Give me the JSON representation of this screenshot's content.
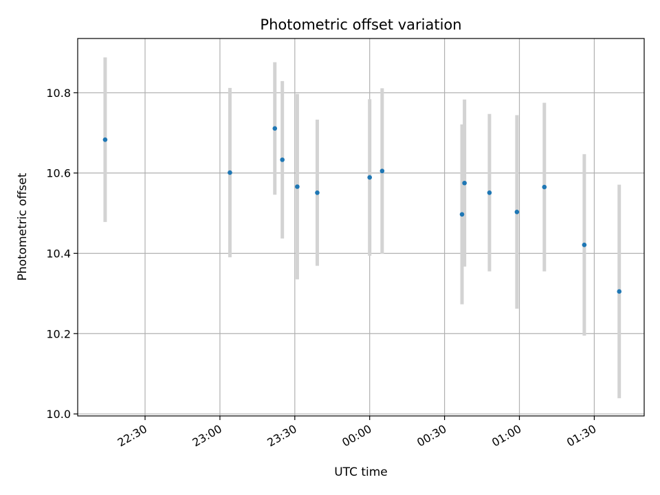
{
  "chart_data": {
    "type": "scatter",
    "title": "Photometric offset variation",
    "xlabel": "UTC time",
    "ylabel": "Photometric offset",
    "x_ticks": [
      "22:30",
      "23:00",
      "23:30",
      "00:00",
      "00:30",
      "01:00",
      "01:30"
    ],
    "x_tick_times": [
      "2000-01-01T22:30",
      "2000-01-01T23:00",
      "2000-01-01T23:30",
      "2000-01-02T00:00",
      "2000-01-02T00:30",
      "2000-01-02T01:00",
      "2000-01-02T01:30"
    ],
    "xlim": [
      "2000-01-01T22:03",
      "2000-01-02T01:50"
    ],
    "y_ticks": [
      "10.0",
      "10.2",
      "10.4",
      "10.6",
      "10.8"
    ],
    "y_tick_values": [
      10.0,
      10.2,
      10.4,
      10.6,
      10.8
    ],
    "ylim": [
      9.995,
      10.935
    ],
    "grid": true,
    "colors": {
      "point": "#1f77b4",
      "errorbar": "#d3d3d3",
      "grid": "#b0b0b0",
      "axes": "#000000"
    },
    "points": [
      {
        "x": "2000-01-01T22:14",
        "y": 10.683,
        "yerr": 0.205
      },
      {
        "x": "2000-01-01T23:04",
        "y": 10.601,
        "yerr": 0.211
      },
      {
        "x": "2000-01-01T23:22",
        "y": 10.711,
        "yerr": 0.165
      },
      {
        "x": "2000-01-01T23:25",
        "y": 10.633,
        "yerr": 0.196
      },
      {
        "x": "2000-01-01T23:31",
        "y": 10.566,
        "yerr": 0.231
      },
      {
        "x": "2000-01-01T23:39",
        "y": 10.551,
        "yerr": 0.182
      },
      {
        "x": "2000-01-02T00:00",
        "y": 10.589,
        "yerr": 0.195
      },
      {
        "x": "2000-01-02T00:05",
        "y": 10.605,
        "yerr": 0.206
      },
      {
        "x": "2000-01-02T00:37",
        "y": 10.497,
        "yerr": 0.224
      },
      {
        "x": "2000-01-02T00:38",
        "y": 10.575,
        "yerr": 0.208
      },
      {
        "x": "2000-01-02T00:48",
        "y": 10.551,
        "yerr": 0.196
      },
      {
        "x": "2000-01-02T00:59",
        "y": 10.503,
        "yerr": 0.241
      },
      {
        "x": "2000-01-02T01:10",
        "y": 10.565,
        "yerr": 0.21
      },
      {
        "x": "2000-01-02T01:26",
        "y": 10.421,
        "yerr": 0.226
      },
      {
        "x": "2000-01-02T01:40",
        "y": 10.305,
        "yerr": 0.266
      }
    ]
  }
}
